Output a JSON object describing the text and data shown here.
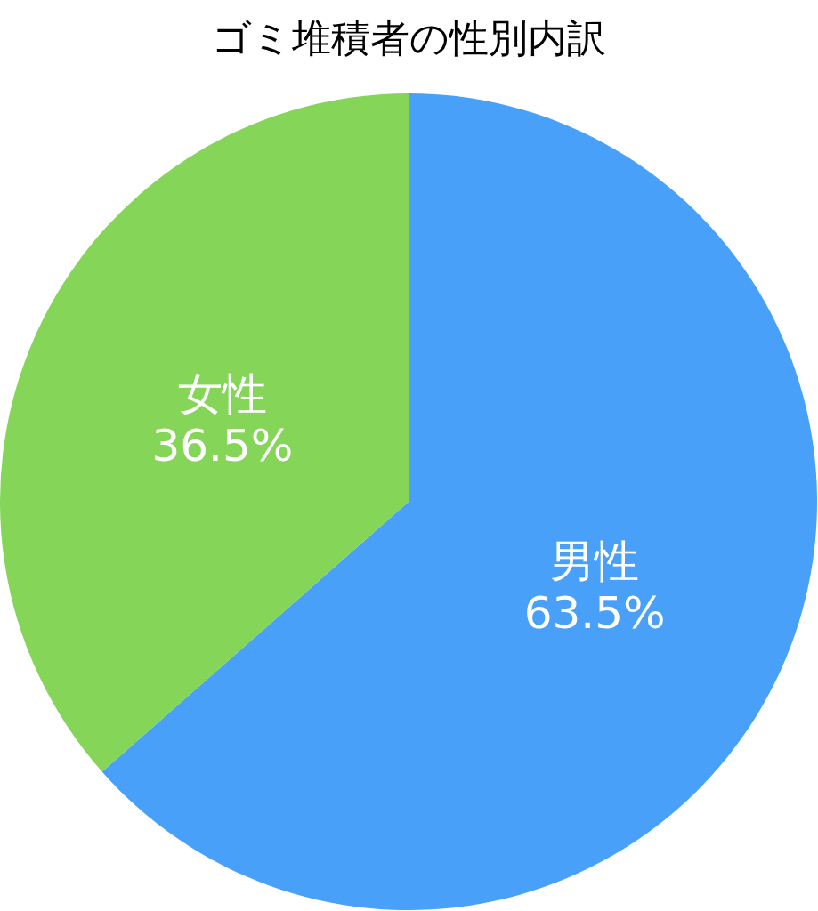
{
  "chart_data": {
    "type": "pie",
    "title": "ゴミ堆積者の性別内訳",
    "categories": [
      "男性",
      "女性"
    ],
    "values": [
      63.5,
      36.5
    ],
    "colors": [
      "#48a0f8",
      "#84d558"
    ],
    "value_labels": [
      "63.5%",
      "36.5%"
    ]
  }
}
